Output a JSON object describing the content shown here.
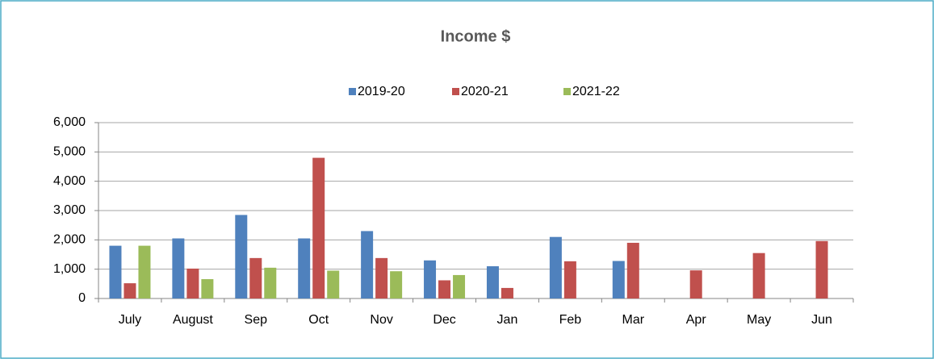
{
  "chart_data": {
    "type": "bar",
    "title": "Income $",
    "categories": [
      "July",
      "August",
      "Sep",
      "Oct",
      "Nov",
      "Dec",
      "Jan",
      "Feb",
      "Mar",
      "Apr",
      "May",
      "Jun"
    ],
    "series": [
      {
        "name": "2019-20",
        "color": "#4f81bd",
        "values": [
          1800,
          2050,
          2850,
          2050,
          2300,
          1300,
          1100,
          2100,
          1280,
          null,
          null,
          null
        ]
      },
      {
        "name": "2020-21",
        "color": "#c0504d",
        "values": [
          520,
          1020,
          1380,
          4800,
          1380,
          620,
          360,
          1270,
          1900,
          960,
          1550,
          1960
        ]
      },
      {
        "name": "2021-22",
        "color": "#9bbb59",
        "values": [
          1800,
          660,
          1050,
          950,
          930,
          800,
          null,
          null,
          null,
          null,
          null,
          null
        ]
      }
    ],
    "ylim": [
      0,
      6000
    ],
    "yticks": [
      0,
      {
        "value": 1000,
        "label": "1,000"
      },
      {
        "value": 2000,
        "label": "2,000"
      },
      {
        "value": 3000,
        "label": "3,000"
      },
      {
        "value": 4000,
        "label": "4,000"
      },
      {
        "value": 5000,
        "label": "5,000"
      },
      {
        "value": 6000,
        "label": "6,000"
      }
    ],
    "grid": true,
    "legend": "top"
  }
}
